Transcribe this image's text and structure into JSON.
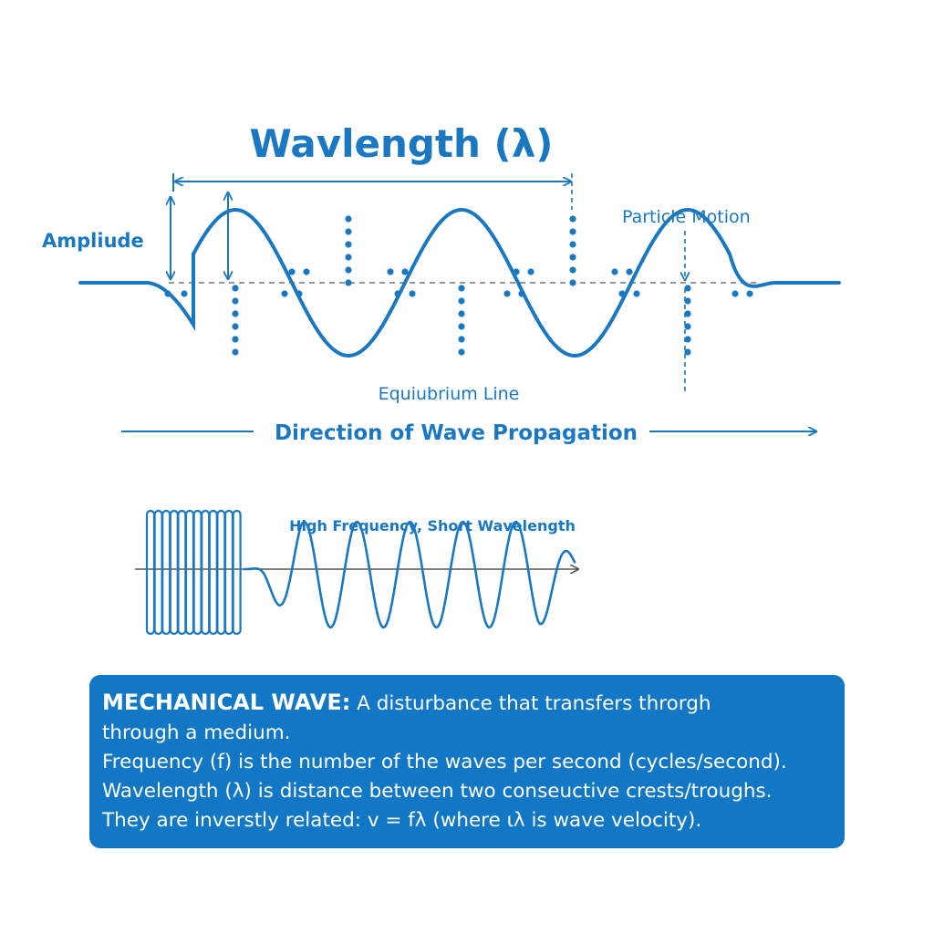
{
  "diagram": {
    "title": "Wavlength (λ)",
    "amplitude_label": "Ampliude",
    "particle_motion_label": "Particle Motion",
    "equilibrium_label": "Equiubrium Line",
    "direction_label": "Direction of Wave Propagation",
    "high_frequency_label": "High Frequency, Short Wavelength",
    "colors": {
      "accent": "#1a78c2",
      "box": "#1277c4",
      "axis": "#666666"
    }
  },
  "info_box": {
    "heading": "MECHANICAL WAVE:",
    "line1_rest": " A disturbance that transfers throrgh",
    "line2": "through a medium.",
    "line3": "Frequency (f) is the number of the waves per second (cycles/second).",
    "line4": "Wavelength (λ) is distance between two conseuctive crests/troughs.",
    "line5": "They are inverstly related: v = fλ (where ιλ is wave velocity)."
  }
}
